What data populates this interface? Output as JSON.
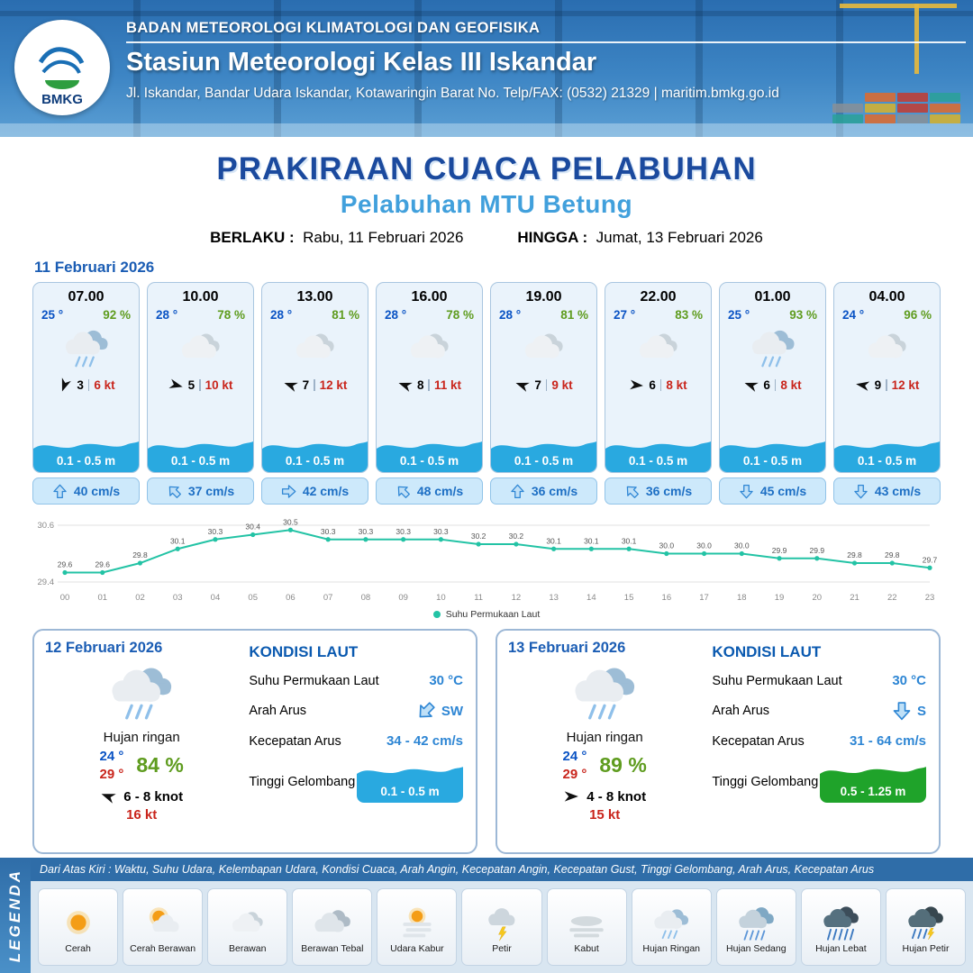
{
  "colors": {
    "header_blue": "#2a6db0",
    "title_blue": "#1b4a9e",
    "subtitle_blue": "#41a0dc",
    "temp_blue": "#0a53c4",
    "humidity_green": "#5f9c1f",
    "gust_red": "#c9251c",
    "wave_blue": "#29a9e0",
    "wave_green": "#1fa32a",
    "chart_teal": "#23c3a5"
  },
  "header": {
    "logo_text": "BMKG",
    "agency": "BADAN METEOROLOGI KLIMATOLOGI DAN GEOFISIKA",
    "station": "Stasiun Meteorologi Kelas III Iskandar",
    "address": "Jl. Iskandar, Bandar Udara Iskandar, Kotawaringin Barat No. Telp/FAX: (0532) 21329 | maritim.bmkg.go.id"
  },
  "title": {
    "main": "PRAKIRAAN CUACA PELABUHAN",
    "subtitle": "Pelabuhan MTU Betung",
    "berlaku_label": "BERLAKU :",
    "berlaku_value": "Rabu, 11 Februari 2026",
    "hingga_label": "HINGGA :",
    "hingga_value": "Jumat, 13 Februari 2026"
  },
  "forecast_date": "11 Februari 2026",
  "hourly": [
    {
      "time": "07.00",
      "temp": "25 °",
      "humidity": "92 %",
      "icon": "hujan-ringan",
      "wind_dir_deg": 110,
      "wind_speed": "3",
      "gust": "6 kt",
      "wave_height": "0.1 - 0.5 m",
      "current_dir_deg": 0,
      "current_speed": "40 cm/s"
    },
    {
      "time": "10.00",
      "temp": "28 °",
      "humidity": "78 %",
      "icon": "berawan",
      "wind_dir_deg": 15,
      "wind_speed": "5",
      "gust": "10 kt",
      "wave_height": "0.1 - 0.5 m",
      "current_dir_deg": 315,
      "current_speed": "37 cm/s"
    },
    {
      "time": "13.00",
      "temp": "28 °",
      "humidity": "81 %",
      "icon": "berawan",
      "wind_dir_deg": 200,
      "wind_speed": "7",
      "gust": "12 kt",
      "wave_height": "0.1 - 0.5 m",
      "current_dir_deg": 90,
      "current_speed": "42 cm/s"
    },
    {
      "time": "16.00",
      "temp": "28 °",
      "humidity": "78 %",
      "icon": "berawan",
      "wind_dir_deg": 200,
      "wind_speed": "8",
      "gust": "11 kt",
      "wave_height": "0.1 - 0.5 m",
      "current_dir_deg": 315,
      "current_speed": "48 cm/s"
    },
    {
      "time": "19.00",
      "temp": "28 °",
      "humidity": "81 %",
      "icon": "berawan",
      "wind_dir_deg": 200,
      "wind_speed": "7",
      "gust": "9 kt",
      "wave_height": "0.1 - 0.5 m",
      "current_dir_deg": 0,
      "current_speed": "36 cm/s"
    },
    {
      "time": "22.00",
      "temp": "27 °",
      "humidity": "83 %",
      "icon": "berawan",
      "wind_dir_deg": 5,
      "wind_speed": "6",
      "gust": "8 kt",
      "wave_height": "0.1 - 0.5 m",
      "current_dir_deg": 315,
      "current_speed": "36 cm/s"
    },
    {
      "time": "01.00",
      "temp": "25 °",
      "humidity": "93 %",
      "icon": "hujan-ringan",
      "wind_dir_deg": 200,
      "wind_speed": "6",
      "gust": "8 kt",
      "wave_height": "0.1 - 0.5 m",
      "current_dir_deg": 180,
      "current_speed": "45 cm/s"
    },
    {
      "time": "04.00",
      "temp": "24 °",
      "humidity": "96 %",
      "icon": "berawan",
      "wind_dir_deg": 190,
      "wind_speed": "9",
      "gust": "12 kt",
      "wave_height": "0.1 - 0.5 m",
      "current_dir_deg": 180,
      "current_speed": "43 cm/s"
    }
  ],
  "chart_data": {
    "type": "line",
    "title": "Suhu Permukaan Laut",
    "legend": "Suhu Permukaan Laut",
    "x": [
      "00",
      "01",
      "02",
      "03",
      "04",
      "05",
      "06",
      "07",
      "08",
      "09",
      "10",
      "11",
      "12",
      "13",
      "14",
      "15",
      "16",
      "17",
      "18",
      "19",
      "20",
      "21",
      "22",
      "23"
    ],
    "values": [
      29.6,
      29.6,
      29.8,
      30.1,
      30.3,
      30.4,
      30.5,
      30.3,
      30.3,
      30.3,
      30.3,
      30.2,
      30.2,
      30.1,
      30.1,
      30.1,
      30.0,
      30.0,
      30.0,
      29.9,
      29.9,
      29.8,
      29.8,
      29.7
    ],
    "ylim": [
      29.4,
      30.6
    ],
    "y_ticks": [
      30.6,
      29.4
    ],
    "line_color": "#23c3a5",
    "grid": true,
    "legend_position": "bottom"
  },
  "sea_labels": {
    "kondisi": "KONDISI LAUT",
    "sst": "Suhu Permukaan Laut",
    "arah": "Arah Arus",
    "kecepatan": "Kecepatan Arus",
    "gelombang": "Tinggi Gelombang"
  },
  "daily": [
    {
      "date": "12 Februari 2026",
      "weather": "Hujan ringan",
      "icon": "hujan-ringan",
      "temp_min": "24 °",
      "temp_max": "29 °",
      "humidity": "84 %",
      "wind_dir_deg": 200,
      "wind_range": "6 - 8 knot",
      "gust": "16 kt",
      "sst": "30 °C",
      "current_dir": "SW",
      "current_dir_deg": 225,
      "current_speed": "34 - 42 cm/s",
      "wave_height": "0.1 - 0.5 m",
      "wave_color": "#29a9e0"
    },
    {
      "date": "13 Februari 2026",
      "weather": "Hujan ringan",
      "icon": "hujan-ringan",
      "temp_min": "24 °",
      "temp_max": "29 °",
      "humidity": "89 %",
      "wind_dir_deg": 0,
      "wind_range": "4 - 8 knot",
      "gust": "15 kt",
      "sst": "30 °C",
      "current_dir": "S",
      "current_dir_deg": 180,
      "current_speed": "31 - 64 cm/s",
      "wave_height": "0.5 - 1.25 m",
      "wave_color": "#1fa32a"
    }
  ],
  "legend": {
    "title": "LEGENDA",
    "note": "Dari Atas Kiri : Waktu, Suhu Udara, Kelembapan Udara, Kondisi Cuaca, Arah Angin, Kecepatan Angin, Kecepatan Gust, Tinggi Gelombang, Arah Arus, Kecepatan Arus",
    "items": [
      {
        "label": "Cerah",
        "icon": "cerah"
      },
      {
        "label": "Cerah Berawan",
        "icon": "cerah-berawan"
      },
      {
        "label": "Berawan",
        "icon": "berawan"
      },
      {
        "label": "Berawan Tebal",
        "icon": "berawan-tebal"
      },
      {
        "label": "Udara Kabur",
        "icon": "udara-kabur"
      },
      {
        "label": "Petir",
        "icon": "petir"
      },
      {
        "label": "Kabut",
        "icon": "kabut"
      },
      {
        "label": "Hujan Ringan",
        "icon": "hujan-ringan"
      },
      {
        "label": "Hujan Sedang",
        "icon": "hujan-sedang"
      },
      {
        "label": "Hujan Lebat",
        "icon": "hujan-lebat"
      },
      {
        "label": "Hujan Petir",
        "icon": "hujan-petir"
      }
    ]
  }
}
